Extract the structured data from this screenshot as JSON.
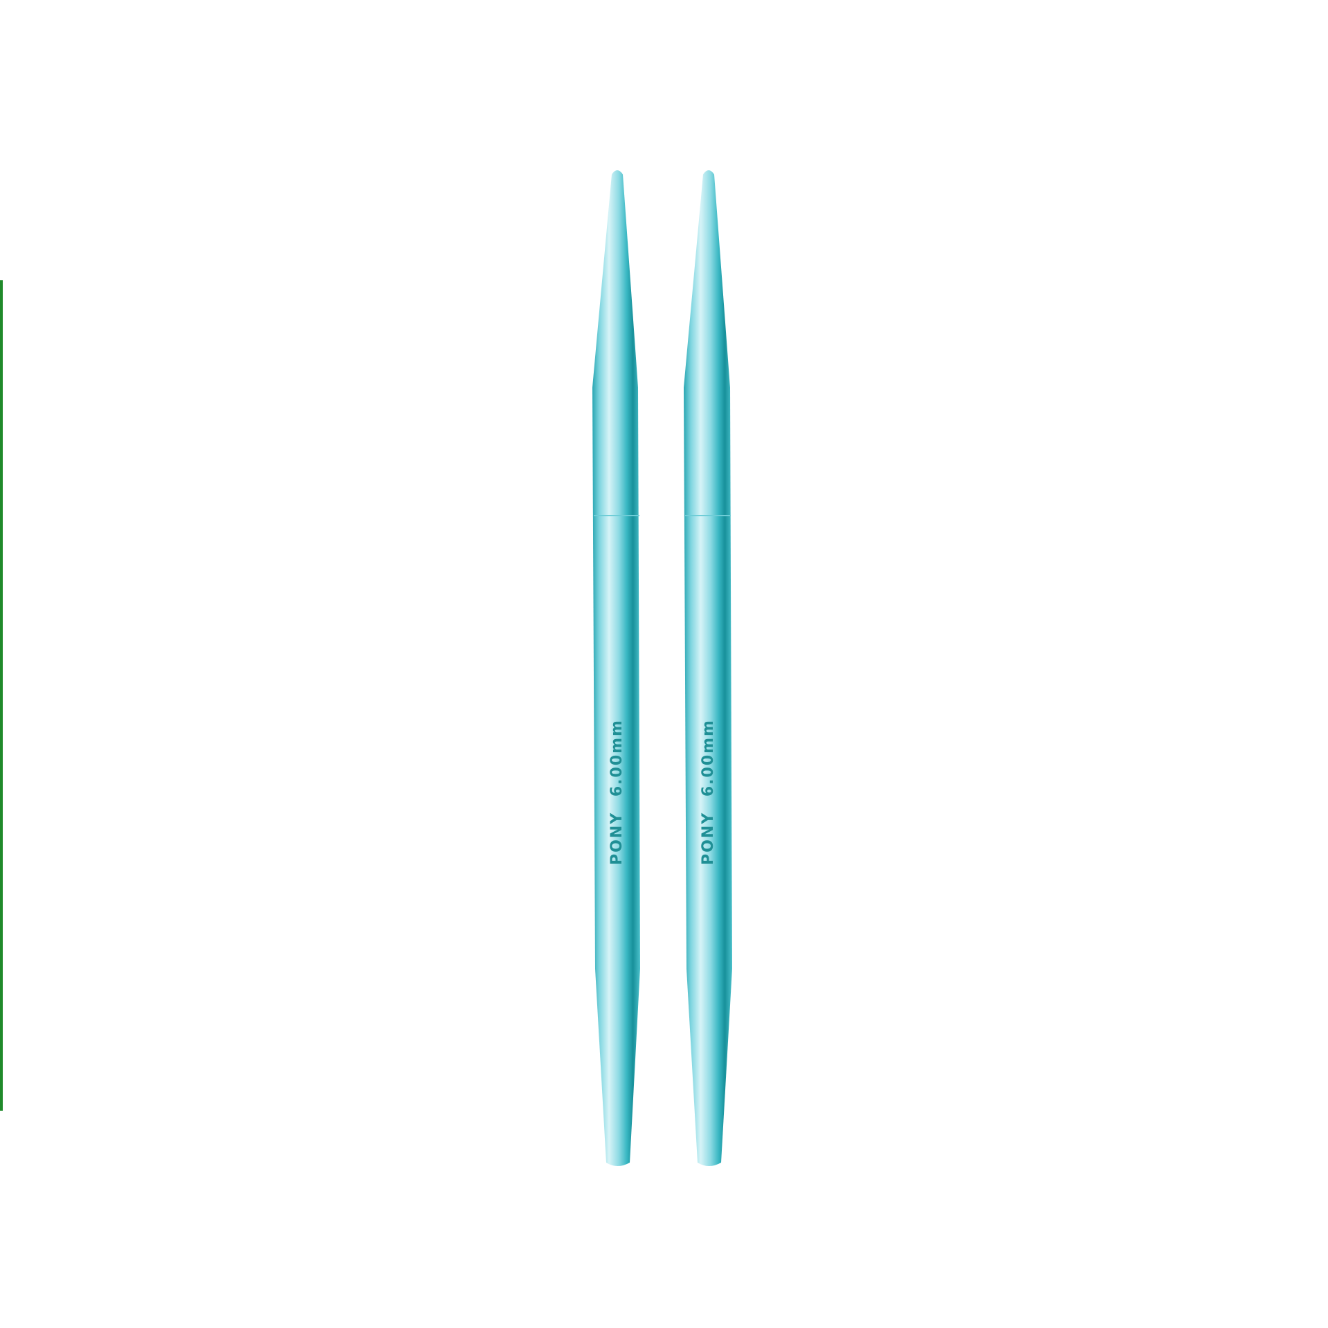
{
  "product": {
    "needles": [
      {
        "brand": "PONY",
        "size": "6.00mm"
      },
      {
        "brand": "PONY",
        "size": "6.00mm"
      }
    ]
  },
  "colors": {
    "needle_light": "#bfe9f0",
    "needle_mid": "#4cc3cf",
    "needle_dark": "#1a8e96",
    "cable_green": "#1f8a2a",
    "background": "#ffffff"
  }
}
